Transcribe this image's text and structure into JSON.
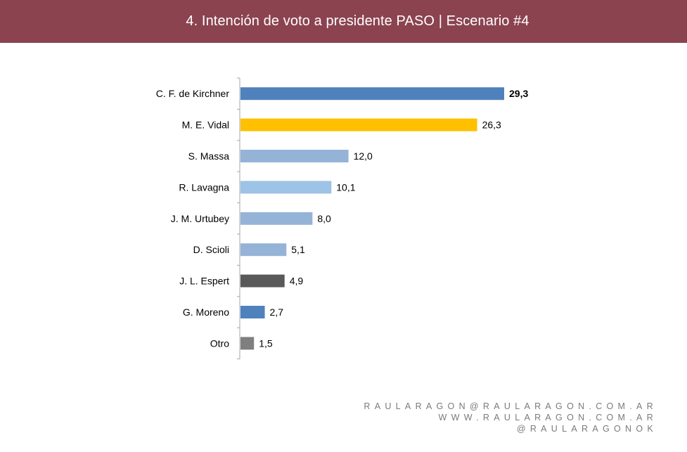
{
  "header": {
    "title": "4. Intención de voto a presidente PASO | Escenario #4"
  },
  "colors": {
    "header_bg": "#8b4350",
    "kirchner": "#4f81bd",
    "vidal": "#ffc000",
    "massa": "#95b3d7",
    "lavagna": "#9dc3e6",
    "urtubey": "#95b3d7",
    "scioli": "#95b3d7",
    "espert": "#595959",
    "moreno": "#4f81bd",
    "otro": "#7f7f7f"
  },
  "chart_data": {
    "type": "bar",
    "orientation": "horizontal",
    "categories": [
      "C. F. de Kirchner",
      "M. E. Vidal",
      "S. Massa",
      "R. Lavagna",
      "J. M. Urtubey",
      "D. Scioli",
      "J. L. Espert",
      "G. Moreno",
      "Otro"
    ],
    "values": [
      29.3,
      26.3,
      12.0,
      10.1,
      8.0,
      5.1,
      4.9,
      2.7,
      1.5
    ],
    "value_labels": [
      "29,3",
      "26,3",
      "12,0",
      "10,1",
      "8,0",
      "5,1",
      "4,9",
      "2,7",
      "1,5"
    ],
    "bar_colors": [
      "#4f81bd",
      "#ffc000",
      "#95b3d7",
      "#9dc3e6",
      "#95b3d7",
      "#95b3d7",
      "#595959",
      "#4f81bd",
      "#7f7f7f"
    ],
    "bold_value_index": 0,
    "xlim": [
      0,
      29.3
    ],
    "grid": false,
    "legend": "none"
  },
  "footer": {
    "email": "RAULARAGON@RAULARAGON.COM.AR",
    "website": "WWW.RAULARAGON.COM.AR",
    "handle": "@RAULARAGONOK"
  }
}
